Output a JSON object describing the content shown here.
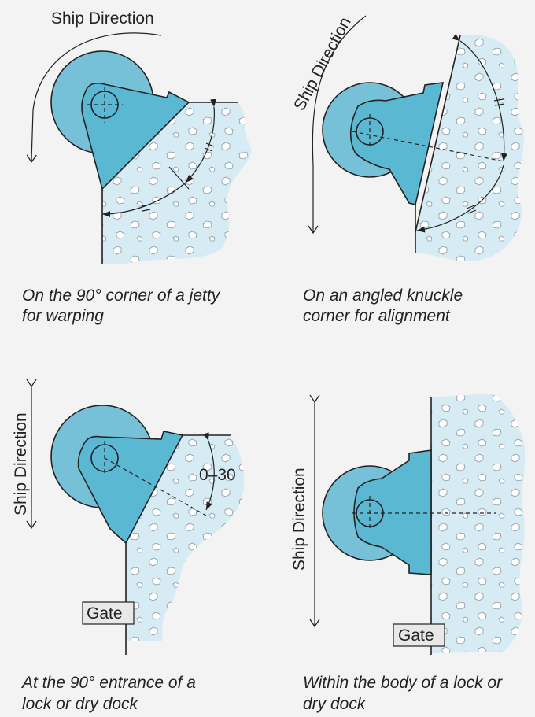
{
  "panels": [
    {
      "direction_label": "Ship Direction",
      "caption": [
        "On the 90° corner of a jetty",
        "for warping"
      ]
    },
    {
      "direction_label": "Ship Direction",
      "caption": [
        "On an angled knuckle",
        "corner for alignment"
      ]
    },
    {
      "direction_label": "Ship Direction",
      "angle_label": "0–30",
      "gate_label": "Gate",
      "caption": [
        "At the 90° entrance of a",
        "lock or dry dock"
      ]
    },
    {
      "direction_label": "Ship Direction",
      "gate_label": "Gate",
      "caption": [
        "Within the body of a lock or",
        "dry dock"
      ]
    }
  ]
}
